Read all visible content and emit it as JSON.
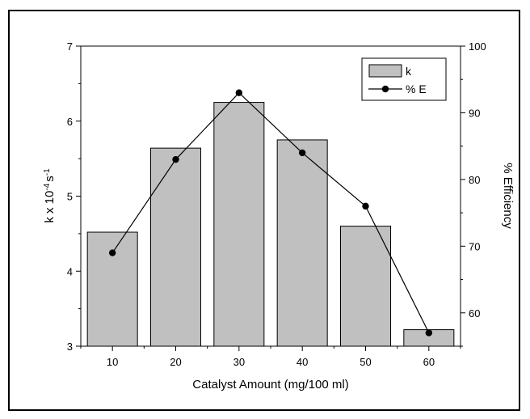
{
  "chart_data": {
    "type": "bar",
    "categories": [
      "10",
      "20",
      "30",
      "40",
      "50",
      "60"
    ],
    "xlabel": "Catalyst Amount (mg/100 ml)",
    "ylabel_left": {
      "prefix": "k x 10",
      "sup1": "-4",
      "mid": "s",
      "sup2": "-1"
    },
    "ylabel_right": "% Efficiency",
    "ylim_left": [
      3,
      7
    ],
    "yticks_left": [
      3,
      4,
      5,
      6,
      7
    ],
    "ylim_right": [
      55,
      100
    ],
    "yticks_right": [
      60,
      70,
      80,
      90,
      100
    ],
    "series": [
      {
        "name": "k",
        "kind": "bar",
        "axis": "left",
        "color": "#c0c0c0",
        "values": [
          4.52,
          5.64,
          6.25,
          5.75,
          4.6,
          3.22
        ]
      },
      {
        "name": "% E",
        "kind": "line-marker",
        "axis": "right",
        "color": "#000000",
        "values": [
          69,
          83,
          93,
          84,
          76,
          57
        ]
      }
    ],
    "legend": {
      "position": "top-right",
      "entries": [
        "k",
        "% E"
      ]
    },
    "grid": false
  }
}
